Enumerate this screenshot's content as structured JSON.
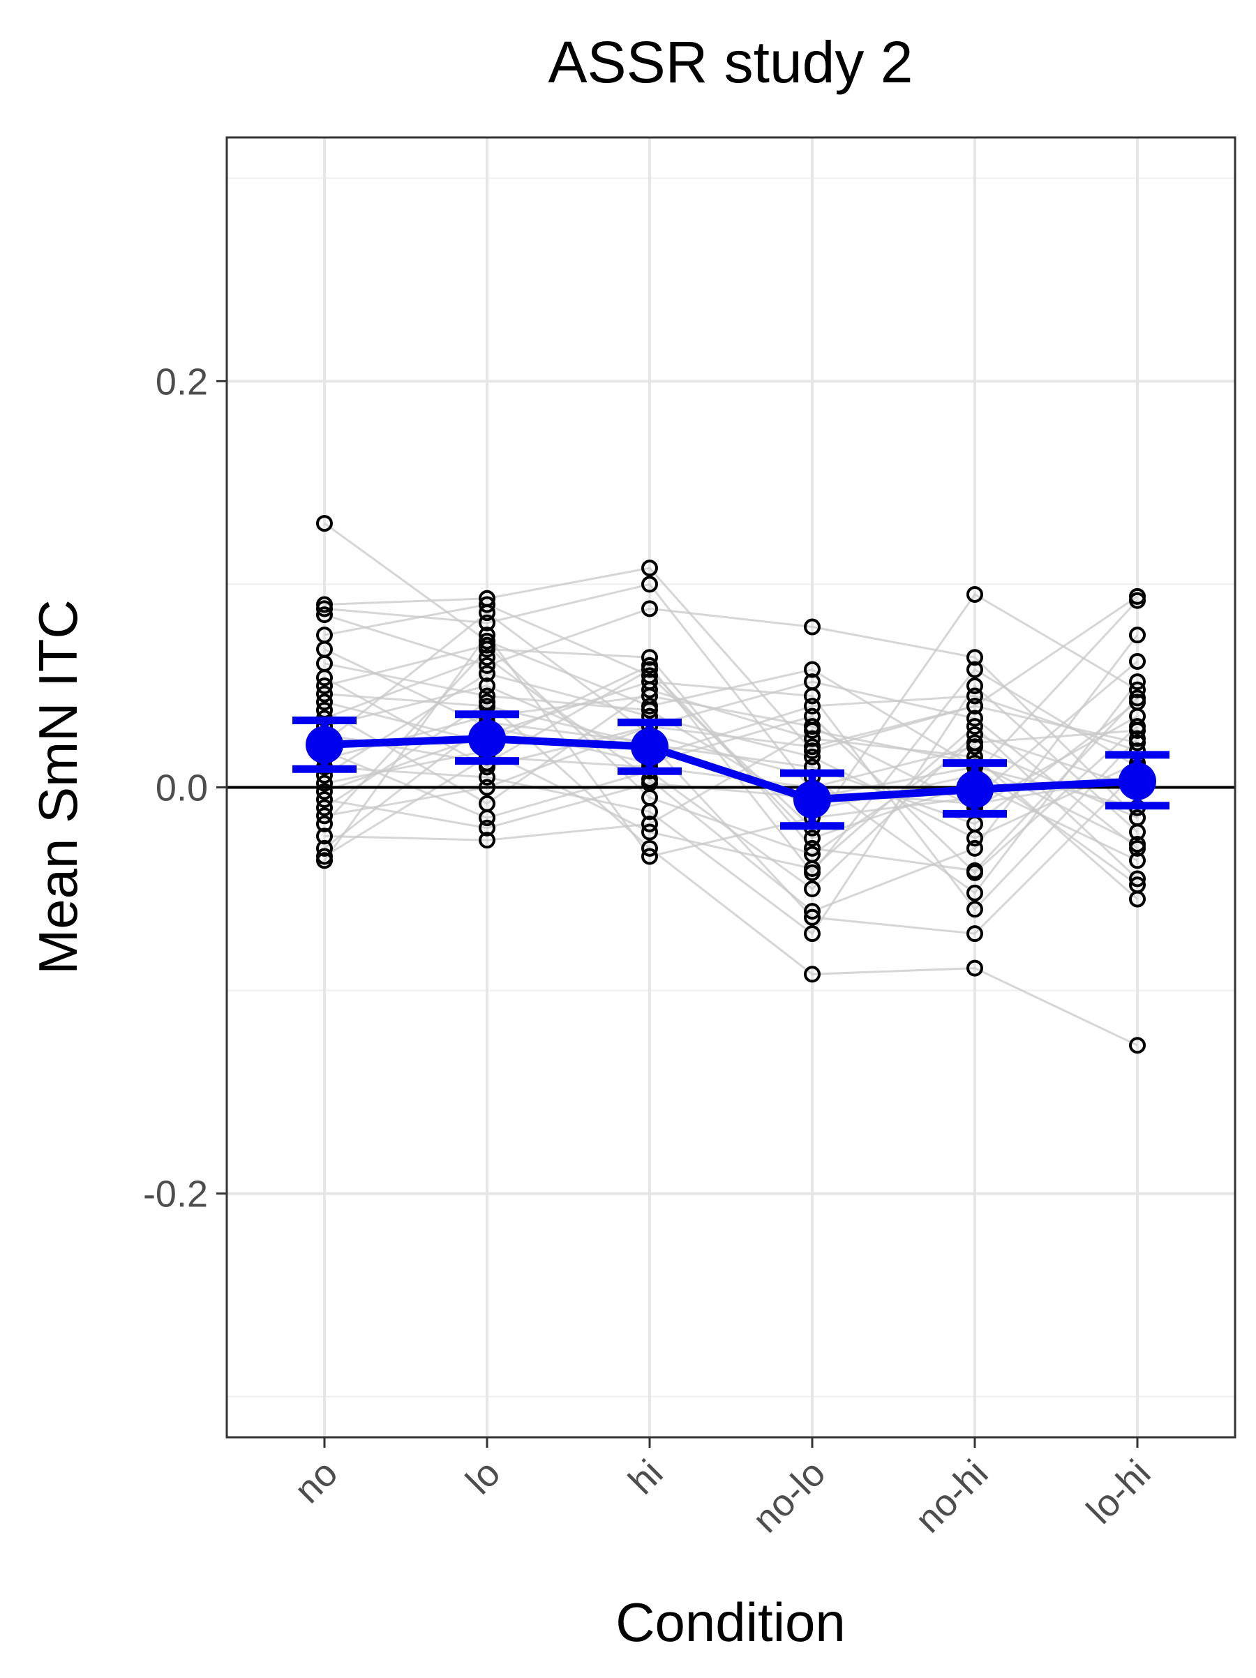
{
  "chart_data": {
    "type": "line",
    "title": "ASSR study 2",
    "xlabel": "Condition",
    "ylabel": "Mean SmN ITC",
    "categories": [
      "no",
      "lo",
      "hi",
      "no-lo",
      "no-hi",
      "lo-hi"
    ],
    "ylim": [
      -0.32,
      0.32
    ],
    "yticks": [
      -0.2,
      0.0,
      0.2
    ],
    "ytick_labels": [
      "-0.2",
      "0.0",
      "0.2"
    ],
    "grid": true,
    "reference_line_y": 0.0,
    "mean_series": {
      "means": [
        0.021,
        0.024,
        0.02,
        -0.006,
        -0.001,
        0.003
      ],
      "error_lower": [
        0.009,
        0.013,
        0.008,
        -0.019,
        -0.013,
        -0.009
      ],
      "error_upper": [
        0.033,
        0.036,
        0.032,
        0.007,
        0.012,
        0.016
      ]
    },
    "participants": [
      [
        0.13,
        0.072,
        0.04,
        0.058,
        0.01,
        -0.048
      ],
      [
        0.09,
        0.093,
        0.108,
        0.018,
        0.04,
        0.022
      ],
      [
        0.088,
        0.081,
        0.1,
        -0.002,
        -0.008,
        0.005
      ],
      [
        0.085,
        0.06,
        0.088,
        0.079,
        0.064,
        -0.015
      ],
      [
        0.075,
        0.09,
        0.055,
        -0.02,
        0.095,
        0.048
      ],
      [
        0.068,
        0.03,
        0.012,
        0.035,
        -0.042,
        0.03
      ],
      [
        0.061,
        0.045,
        0.038,
        -0.011,
        0.006,
        0.092
      ],
      [
        0.054,
        0.01,
        0.03,
        0.052,
        0.034,
        -0.03
      ],
      [
        0.05,
        0.07,
        -0.005,
        -0.033,
        0.022,
        0.028
      ],
      [
        0.046,
        0.04,
        0.021,
        0.01,
        -0.018,
        0.042
      ],
      [
        0.042,
        0.022,
        0.06,
        -0.042,
        0.058,
        0.01
      ],
      [
        0.038,
        -0.008,
        0.048,
        0.024,
        0.015,
        -0.055
      ],
      [
        0.034,
        0.064,
        0.004,
        -0.061,
        -0.03,
        0.075
      ],
      [
        0.03,
        0.05,
        0.015,
        0.04,
        0.045,
        0.018
      ],
      [
        0.026,
        0.012,
        0.058,
        -0.025,
        0.002,
        -0.036
      ],
      [
        0.022,
        0.086,
        0.026,
        0.005,
        -0.052,
        0.052
      ],
      [
        0.018,
        -0.015,
        0.008,
        -0.05,
        0.026,
        0.0
      ],
      [
        0.014,
        0.035,
        0.045,
        0.03,
        -0.01,
        0.035
      ],
      [
        0.01,
        0.005,
        -0.012,
        -0.072,
        0.05,
        -0.022
      ],
      [
        0.006,
        0.056,
        0.035,
        0.015,
        -0.025,
        0.012
      ],
      [
        0.002,
        0.018,
        -0.022,
        -0.04,
        0.03,
        -0.045
      ],
      [
        -0.002,
        0.026,
        0.052,
        0.045,
        -0.06,
        0.024
      ],
      [
        -0.006,
        -0.02,
        0.002,
        -0.005,
        0.01,
        -0.01
      ],
      [
        -0.01,
        0.042,
        -0.03,
        -0.092,
        -0.089,
        -0.127
      ],
      [
        -0.014,
        0.0,
        0.03,
        0.02,
        0.04,
        0.094
      ],
      [
        -0.018,
        0.068,
        0.064,
        -0.03,
        -0.041,
        0.044
      ],
      [
        -0.024,
        -0.026,
        -0.018,
        0.028,
        0.012,
        -0.028
      ],
      [
        -0.03,
        0.032,
        0.022,
        -0.064,
        -0.072,
        0.008
      ],
      [
        -0.034,
        0.015,
        0.01,
        0.0,
        0.02,
        -0.015
      ],
      [
        -0.036,
        0.075,
        -0.034,
        -0.015,
        -0.005,
        0.062
      ]
    ]
  }
}
